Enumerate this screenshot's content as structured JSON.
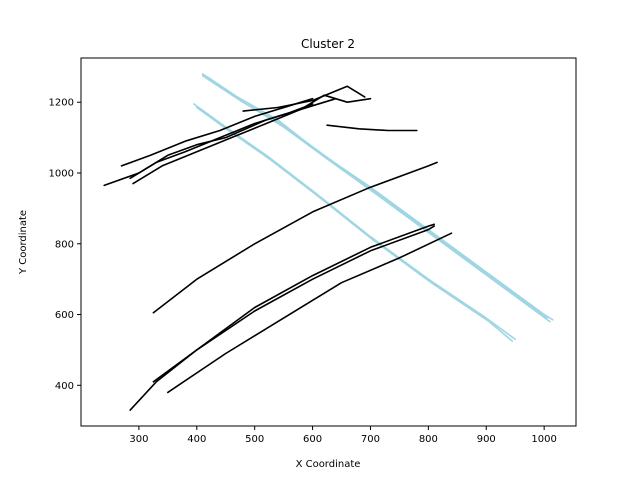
{
  "chart_data": {
    "type": "line",
    "title": "Cluster 2",
    "xlabel": "X Coordinate",
    "ylabel": "Y Coordinate",
    "xlim": [
      200,
      1055
    ],
    "ylim": [
      285,
      1325
    ],
    "xticks": [
      300,
      400,
      500,
      600,
      700,
      800,
      900,
      1000
    ],
    "yticks": [
      400,
      600,
      800,
      1000,
      1200
    ],
    "grid": false,
    "colors": {
      "black": "#000000",
      "light": "#9fd6e3"
    },
    "series": [
      {
        "color": "light",
        "points": [
          [
            410,
            1280
          ],
          [
            470,
            1215
          ],
          [
            540,
            1150
          ],
          [
            610,
            1060
          ],
          [
            700,
            960
          ],
          [
            800,
            840
          ],
          [
            900,
            720
          ],
          [
            1000,
            600
          ],
          [
            1015,
            585
          ]
        ]
      },
      {
        "color": "light",
        "points": [
          [
            410,
            1275
          ],
          [
            475,
            1205
          ],
          [
            545,
            1140
          ],
          [
            620,
            1050
          ],
          [
            705,
            950
          ],
          [
            805,
            830
          ],
          [
            905,
            710
          ],
          [
            1005,
            590
          ]
        ]
      },
      {
        "color": "light",
        "points": [
          [
            420,
            1270
          ],
          [
            480,
            1200
          ],
          [
            550,
            1130
          ],
          [
            625,
            1040
          ],
          [
            710,
            940
          ],
          [
            810,
            820
          ],
          [
            910,
            700
          ],
          [
            1010,
            580
          ]
        ]
      },
      {
        "color": "light",
        "points": [
          [
            395,
            1195
          ],
          [
            450,
            1130
          ],
          [
            520,
            1050
          ],
          [
            600,
            950
          ],
          [
            700,
            820
          ],
          [
            800,
            700
          ],
          [
            900,
            590
          ],
          [
            950,
            530
          ]
        ]
      },
      {
        "color": "light",
        "points": [
          [
            400,
            1185
          ],
          [
            455,
            1120
          ],
          [
            525,
            1040
          ],
          [
            605,
            940
          ],
          [
            705,
            810
          ],
          [
            805,
            690
          ],
          [
            905,
            580
          ],
          [
            945,
            525
          ]
        ]
      },
      {
        "color": "black",
        "points": [
          [
            285,
            330
          ],
          [
            330,
            410
          ],
          [
            400,
            500
          ],
          [
            500,
            610
          ],
          [
            600,
            700
          ],
          [
            700,
            780
          ],
          [
            800,
            840
          ],
          [
            810,
            850
          ]
        ]
      },
      {
        "color": "black",
        "points": [
          [
            325,
            410
          ],
          [
            400,
            500
          ],
          [
            500,
            620
          ],
          [
            600,
            710
          ],
          [
            700,
            790
          ],
          [
            800,
            850
          ],
          [
            810,
            855
          ]
        ]
      },
      {
        "color": "black",
        "points": [
          [
            350,
            380
          ],
          [
            450,
            490
          ],
          [
            550,
            590
          ],
          [
            650,
            690
          ],
          [
            750,
            760
          ],
          [
            840,
            830
          ]
        ]
      },
      {
        "color": "black",
        "points": [
          [
            325,
            605
          ],
          [
            400,
            700
          ],
          [
            500,
            800
          ],
          [
            600,
            890
          ],
          [
            700,
            960
          ],
          [
            800,
            1020
          ],
          [
            815,
            1030
          ]
        ]
      },
      {
        "color": "black",
        "points": [
          [
            240,
            965
          ],
          [
            300,
            1000
          ],
          [
            350,
            1050
          ],
          [
            400,
            1080
          ],
          [
            450,
            1100
          ],
          [
            520,
            1150
          ],
          [
            580,
            1180
          ],
          [
            620,
            1220
          ],
          [
            660,
            1200
          ],
          [
            700,
            1210
          ]
        ]
      },
      {
        "color": "black",
        "points": [
          [
            270,
            1020
          ],
          [
            320,
            1050
          ],
          [
            380,
            1090
          ],
          [
            440,
            1120
          ],
          [
            500,
            1160
          ],
          [
            560,
            1190
          ],
          [
            600,
            1210
          ]
        ]
      },
      {
        "color": "black",
        "points": [
          [
            285,
            985
          ],
          [
            330,
            1030
          ],
          [
            380,
            1060
          ],
          [
            440,
            1100
          ],
          [
            500,
            1140
          ],
          [
            560,
            1170
          ],
          [
            600,
            1195
          ]
        ]
      },
      {
        "color": "black",
        "points": [
          [
            290,
            970
          ],
          [
            340,
            1020
          ],
          [
            400,
            1060
          ],
          [
            460,
            1100
          ],
          [
            520,
            1140
          ],
          [
            580,
            1180
          ],
          [
            640,
            1210
          ]
        ]
      },
      {
        "color": "black",
        "points": [
          [
            480,
            1175
          ],
          [
            540,
            1185
          ],
          [
            600,
            1205
          ],
          [
            630,
            1225
          ],
          [
            660,
            1245
          ],
          [
            690,
            1215
          ]
        ]
      },
      {
        "color": "black",
        "points": [
          [
            625,
            1135
          ],
          [
            680,
            1125
          ],
          [
            730,
            1120
          ],
          [
            780,
            1120
          ]
        ]
      }
    ]
  }
}
